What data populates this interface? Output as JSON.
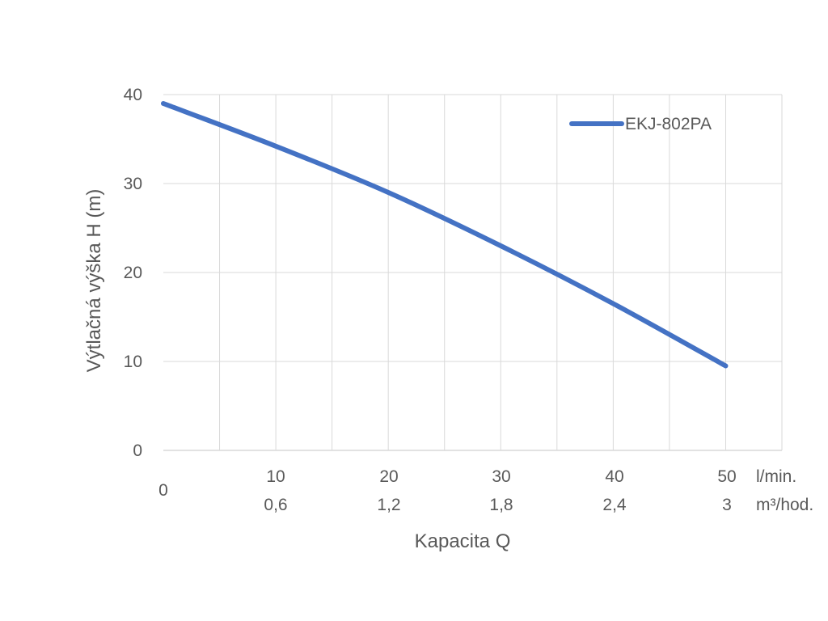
{
  "chart_data": {
    "type": "line",
    "title": "",
    "xlabel": "Kapacita Q",
    "ylabel": "Výtlačná výška H (m)",
    "xlim": [
      0,
      55
    ],
    "ylim": [
      0,
      40
    ],
    "grid": true,
    "legend_position": "top-right",
    "y_ticks": [
      "0",
      "10",
      "20",
      "30",
      "40"
    ],
    "x_origin_label": "0",
    "x_ticks_primary": [
      "10",
      "20",
      "30",
      "40",
      "50"
    ],
    "x_ticks_secondary": [
      "0,6",
      "1,2",
      "1,8",
      "2,4",
      "3"
    ],
    "x_unit_primary": "l/min.",
    "x_unit_secondary": "m³/hod.",
    "series": [
      {
        "name": "EKJ-802PA",
        "color": "#4472C4",
        "x": [
          0,
          10,
          20,
          30,
          40,
          50
        ],
        "y": [
          39,
          34.2,
          29,
          23,
          16.5,
          9.5
        ]
      }
    ]
  }
}
